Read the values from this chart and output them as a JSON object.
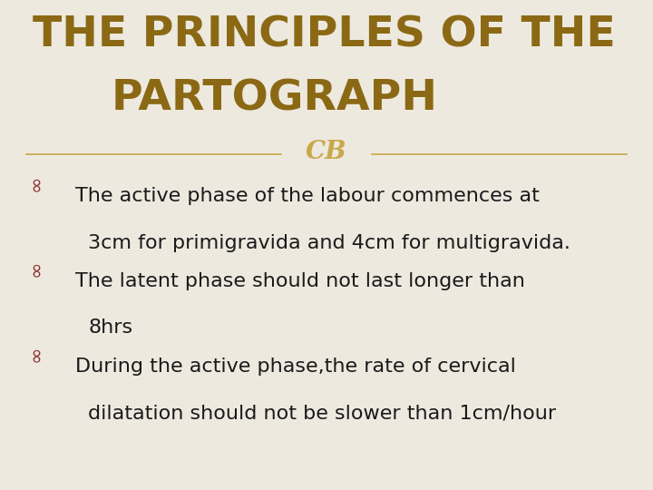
{
  "title_line1": "THE PRINCIPLES OF THE",
  "title_line2": "PARTOGRAPH",
  "title_color": "#8B6914",
  "background_color": "#EDE9DF",
  "bullet_color": "#8B3030",
  "text_color": "#1a1a1a",
  "divider_color": "#C8A84B",
  "bullets": [
    {
      "line1": "The active phase of the labour commences at",
      "line2": "3cm for primigravida and 4cm for multigravida."
    },
    {
      "line1": "The latent phase should not last longer than",
      "line2": "8hrs"
    },
    {
      "line1": "During the active phase,the rate of cervical",
      "line2": "dilatation should not be slower than 1cm/hour"
    }
  ],
  "figwidth": 7.2,
  "figheight": 5.4,
  "dpi": 100,
  "title_fontsize": 34,
  "body_fontsize": 16,
  "bullet_fontsize": 16
}
